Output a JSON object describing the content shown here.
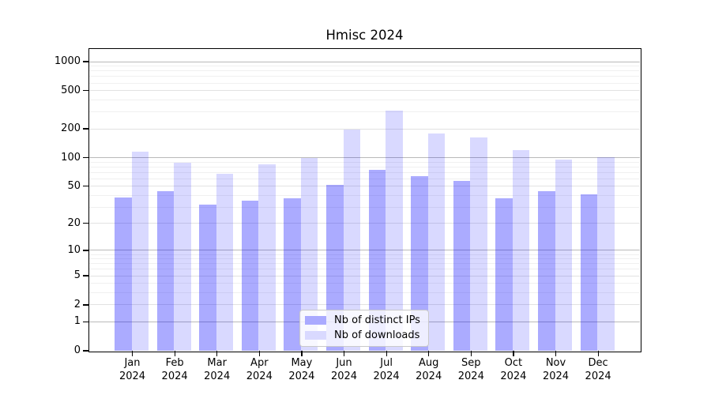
{
  "chart_data": {
    "type": "bar",
    "title": "Hmisc 2024",
    "categories": [
      "Jan",
      "Feb",
      "Mar",
      "Apr",
      "May",
      "Jun",
      "Jul",
      "Aug",
      "Sep",
      "Oct",
      "Nov",
      "Dec"
    ],
    "category_year": "2024",
    "series": [
      {
        "name": "Nb of distinct IPs",
        "color": "#aaaaff",
        "fill_rgba": "rgba(0,0,255,0.33)",
        "values": [
          38,
          44,
          32,
          35,
          37,
          52,
          74,
          64,
          57,
          37,
          44,
          41
        ]
      },
      {
        "name": "Nb of downloads",
        "color": "#d9d9ff",
        "fill_rgba": "rgba(0,0,255,0.15)",
        "values": [
          115,
          88,
          67,
          85,
          100,
          197,
          310,
          180,
          163,
          121,
          96,
          101
        ]
      }
    ],
    "yscale": "log1p",
    "yticks": [
      0,
      1,
      2,
      5,
      10,
      20,
      50,
      100,
      200,
      500,
      1000
    ],
    "ylim": [
      0,
      1500
    ],
    "xlabel": "",
    "ylabel": "",
    "grid": true,
    "legend_position": "lower center inside"
  },
  "style": {
    "background": "#ffffff",
    "spine_color": "#000000",
    "gridline_major_color": "#b9b9b9",
    "gridline_labeled_color": "#e2e2e2",
    "gridline_minor_color": "#f0f0f0",
    "legend_border_color": "#c9c9c9"
  }
}
